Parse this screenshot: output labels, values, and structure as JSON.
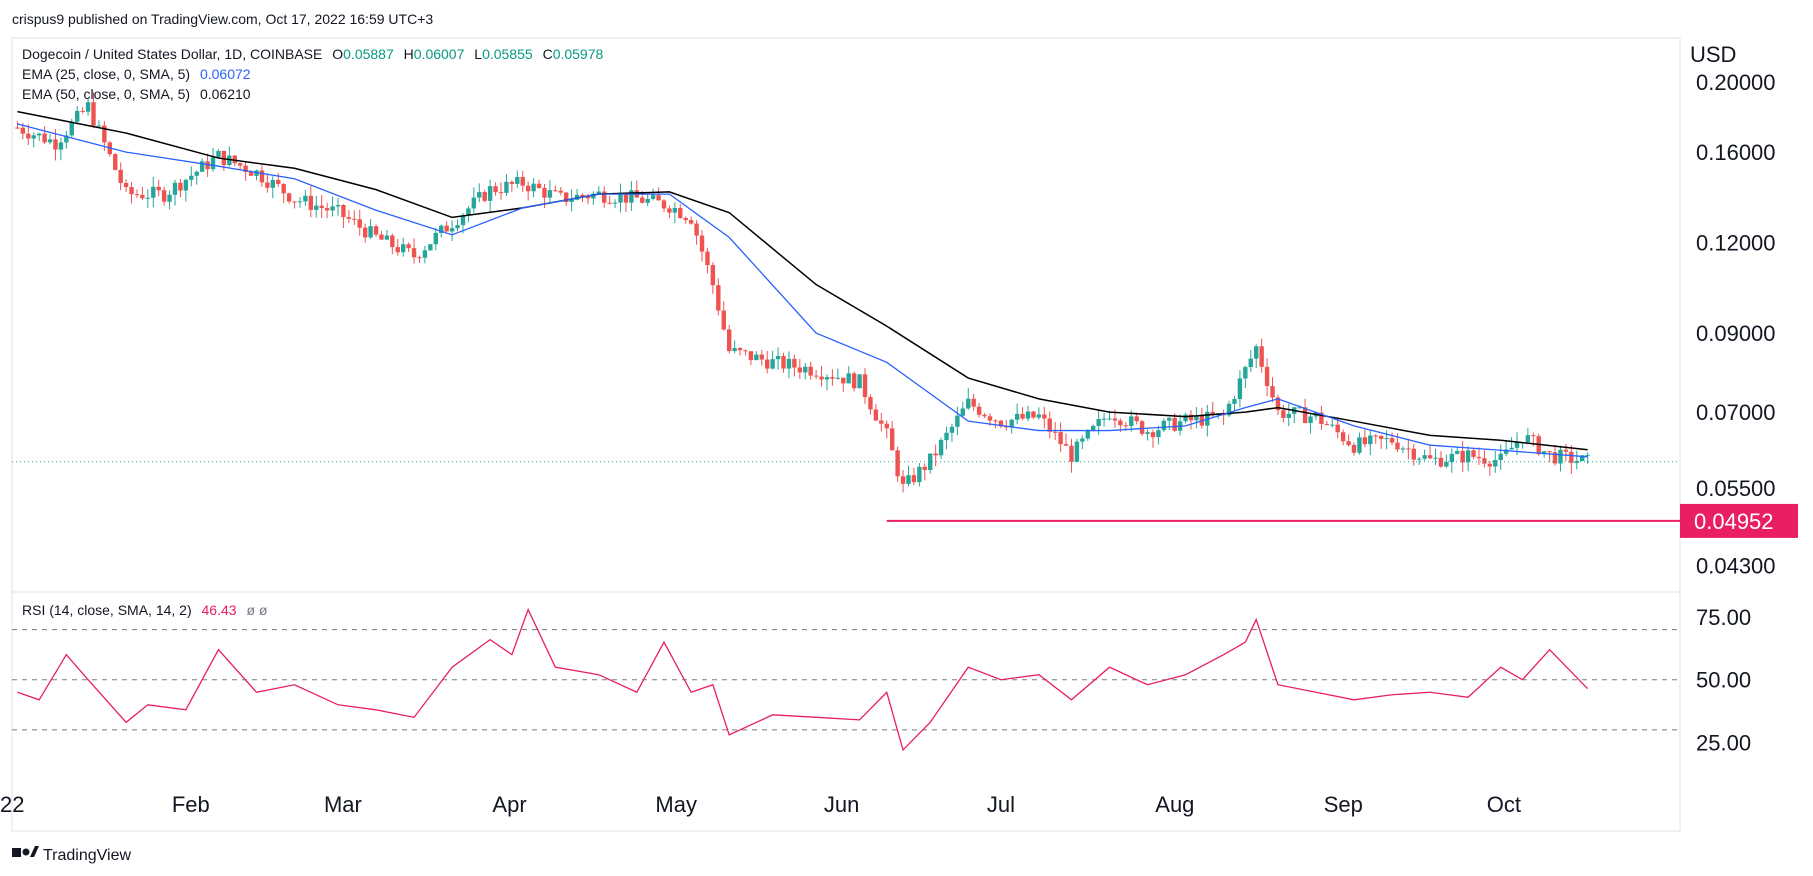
{
  "header": {
    "publish_line": "crispus9 published on TradingView.com, Oct 17, 2022 16:59 UTC+3"
  },
  "legend": {
    "symbol": "Dogecoin / United States Dollar, 1D, COINBASE",
    "o_label": "O",
    "o_value": "0.05887",
    "h_label": "H",
    "h_value": "0.06007",
    "l_label": "L",
    "l_value": "0.05855",
    "c_label": "C",
    "c_value": "0.05978",
    "ema25_label": "EMA (25, close, 0, SMA, 5)",
    "ema25_value": "0.06072",
    "ema50_label": "EMA (50, close, 0, SMA, 5)",
    "ema50_value": "0.06210",
    "rsi_label": "RSI (14, close, SMA, 14, 2)",
    "rsi_value": "46.43",
    "rsi_extra": "ø  ø"
  },
  "price_axis": {
    "currency": "USD",
    "ticks": [
      "0.20000",
      "0.16000",
      "0.12000",
      "0.09000",
      "0.07000",
      "0.05500",
      "0.04300"
    ],
    "support_label": "0.04952"
  },
  "rsi_axis": {
    "ticks": [
      "75.00",
      "50.00",
      "25.00"
    ]
  },
  "time_axis": {
    "labels": [
      "22",
      "Feb",
      "Mar",
      "Apr",
      "May",
      "Jun",
      "Jul",
      "Aug",
      "Sep",
      "Oct"
    ]
  },
  "footer": {
    "brand": "TradingView"
  },
  "colors": {
    "up": "#26a69a",
    "down": "#ef5350",
    "ema25": "#2962ff",
    "ema50": "#000000",
    "rsi": "#e91e63",
    "support": "#e91e63",
    "support_badge": "#e91e63"
  },
  "chart_data": {
    "type": "candlestick",
    "symbol": "DOGE/USD",
    "interval": "1D",
    "exchange": "COINBASE",
    "date_range": [
      "2022-01-01",
      "2022-10-17"
    ],
    "price_scale": "log",
    "price_range": [
      0.043,
      0.2
    ],
    "support_level": 0.04952,
    "last_close": 0.05978,
    "ema25_last": 0.06072,
    "ema50_last": 0.0621,
    "close_series": {
      "x": [
        "2022-01-01",
        "2022-01-08",
        "2022-01-14",
        "2022-01-21",
        "2022-01-28",
        "2022-02-07",
        "2022-02-14",
        "2022-02-21",
        "2022-03-01",
        "2022-03-08",
        "2022-03-15",
        "2022-03-22",
        "2022-03-29",
        "2022-04-04",
        "2022-04-11",
        "2022-04-18",
        "2022-04-25",
        "2022-05-01",
        "2022-05-05",
        "2022-05-09",
        "2022-05-12",
        "2022-05-20",
        "2022-05-28",
        "2022-06-05",
        "2022-06-10",
        "2022-06-13",
        "2022-06-18",
        "2022-06-25",
        "2022-07-01",
        "2022-07-08",
        "2022-07-14",
        "2022-07-21",
        "2022-07-28",
        "2022-08-04",
        "2022-08-11",
        "2022-08-15",
        "2022-08-17",
        "2022-08-21",
        "2022-08-28",
        "2022-09-04",
        "2022-09-11",
        "2022-09-18",
        "2022-09-25",
        "2022-10-01",
        "2022-10-05",
        "2022-10-10",
        "2022-10-17"
      ],
      "values": [
        0.173,
        0.165,
        0.185,
        0.14,
        0.14,
        0.158,
        0.15,
        0.138,
        0.132,
        0.122,
        0.115,
        0.128,
        0.142,
        0.145,
        0.138,
        0.14,
        0.138,
        0.135,
        0.13,
        0.105,
        0.085,
        0.082,
        0.08,
        0.077,
        0.065,
        0.055,
        0.06,
        0.072,
        0.068,
        0.069,
        0.061,
        0.07,
        0.066,
        0.068,
        0.069,
        0.08,
        0.086,
        0.07,
        0.069,
        0.063,
        0.064,
        0.06,
        0.061,
        0.06,
        0.065,
        0.061,
        0.05978
      ]
    },
    "ema25_series": {
      "x": [
        "2022-01-01",
        "2022-01-21",
        "2022-02-07",
        "2022-02-21",
        "2022-03-08",
        "2022-03-22",
        "2022-04-04",
        "2022-04-18",
        "2022-05-01",
        "2022-05-12",
        "2022-05-28",
        "2022-06-10",
        "2022-06-25",
        "2022-07-08",
        "2022-07-21",
        "2022-08-04",
        "2022-08-15",
        "2022-08-21",
        "2022-09-04",
        "2022-09-18",
        "2022-10-01",
        "2022-10-17"
      ],
      "values": [
        0.175,
        0.16,
        0.153,
        0.147,
        0.133,
        0.123,
        0.134,
        0.14,
        0.14,
        0.122,
        0.09,
        0.082,
        0.068,
        0.066,
        0.066,
        0.067,
        0.071,
        0.073,
        0.067,
        0.063,
        0.062,
        0.06072
      ]
    },
    "ema50_series": {
      "x": [
        "2022-01-01",
        "2022-01-21",
        "2022-02-07",
        "2022-02-21",
        "2022-03-08",
        "2022-03-22",
        "2022-04-04",
        "2022-04-18",
        "2022-05-01",
        "2022-05-12",
        "2022-05-28",
        "2022-06-10",
        "2022-06-25",
        "2022-07-08",
        "2022-07-21",
        "2022-08-04",
        "2022-08-15",
        "2022-08-21",
        "2022-09-04",
        "2022-09-18",
        "2022-10-01",
        "2022-10-17"
      ],
      "values": [
        0.182,
        0.17,
        0.157,
        0.152,
        0.142,
        0.13,
        0.134,
        0.14,
        0.141,
        0.132,
        0.105,
        0.092,
        0.078,
        0.073,
        0.07,
        0.069,
        0.07,
        0.071,
        0.068,
        0.065,
        0.064,
        0.0621
      ]
    },
    "rsi": {
      "period": 14,
      "range": [
        0,
        100
      ],
      "levels": [
        70,
        50,
        30
      ],
      "last": 46.43,
      "x": [
        "2022-01-01",
        "2022-01-05",
        "2022-01-10",
        "2022-01-14",
        "2022-01-21",
        "2022-01-25",
        "2022-02-01",
        "2022-02-07",
        "2022-02-14",
        "2022-02-21",
        "2022-03-01",
        "2022-03-08",
        "2022-03-15",
        "2022-03-22",
        "2022-03-29",
        "2022-04-02",
        "2022-04-05",
        "2022-04-10",
        "2022-04-18",
        "2022-04-25",
        "2022-04-30",
        "2022-05-05",
        "2022-05-09",
        "2022-05-12",
        "2022-05-20",
        "2022-05-28",
        "2022-06-05",
        "2022-06-10",
        "2022-06-13",
        "2022-06-18",
        "2022-06-25",
        "2022-07-01",
        "2022-07-08",
        "2022-07-14",
        "2022-07-21",
        "2022-07-28",
        "2022-08-04",
        "2022-08-11",
        "2022-08-15",
        "2022-08-17",
        "2022-08-21",
        "2022-08-28",
        "2022-09-04",
        "2022-09-11",
        "2022-09-18",
        "2022-09-25",
        "2022-10-01",
        "2022-10-05",
        "2022-10-10",
        "2022-10-17"
      ],
      "values": [
        45,
        42,
        60,
        50,
        33,
        40,
        38,
        62,
        45,
        48,
        40,
        38,
        35,
        55,
        66,
        60,
        78,
        55,
        52,
        45,
        65,
        45,
        48,
        28,
        36,
        35,
        34,
        45,
        22,
        33,
        55,
        50,
        52,
        42,
        55,
        48,
        52,
        60,
        65,
        74,
        48,
        45,
        42,
        44,
        45,
        43,
        55,
        50,
        62,
        46.43
      ]
    }
  }
}
